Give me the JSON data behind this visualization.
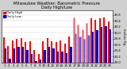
{
  "title": "Milwaukee Weather: Barometric Pressure\nDaily High/Low",
  "title_fontsize": 3.8,
  "ylabel": "Inches Hg",
  "ylabel_fontsize": 3.0,
  "bar_width": 0.42,
  "background_color": "#d0d0d0",
  "plot_bg_color": "#ffffff",
  "high_color": "#ff0000",
  "low_color": "#0000cc",
  "dashed_bar_edge_color": "#aaaaee",
  "ylim_min": 29.0,
  "ylim_max": 30.75,
  "yticks": [
    29.0,
    29.2,
    29.4,
    29.6,
    29.8,
    30.0,
    30.2,
    30.4,
    30.6
  ],
  "days": [
    1,
    2,
    3,
    4,
    5,
    6,
    7,
    8,
    9,
    10,
    11,
    12,
    13,
    14,
    15,
    16,
    17,
    18,
    19,
    20,
    21,
    22,
    23,
    24,
    25
  ],
  "high_values": [
    29.85,
    29.55,
    29.75,
    29.78,
    29.82,
    29.68,
    29.72,
    29.42,
    29.3,
    29.72,
    29.82,
    29.72,
    29.68,
    29.75,
    29.62,
    29.88,
    30.52,
    30.28,
    30.12,
    30.32,
    30.48,
    30.42,
    30.48,
    30.52,
    30.38
  ],
  "low_values": [
    29.48,
    29.12,
    29.48,
    29.52,
    29.52,
    29.42,
    29.28,
    29.05,
    29.1,
    29.42,
    29.52,
    29.48,
    29.38,
    29.38,
    29.32,
    29.52,
    29.98,
    29.88,
    29.78,
    29.92,
    30.02,
    30.08,
    30.18,
    30.22,
    30.12
  ],
  "dashed_indices": [
    16,
    17,
    18,
    19
  ],
  "legend_entries": [
    "Daily High",
    "Daily Low"
  ],
  "legend_fontsize": 2.8,
  "tick_fontsize": 2.8,
  "xlabel_fontsize": 2.8
}
